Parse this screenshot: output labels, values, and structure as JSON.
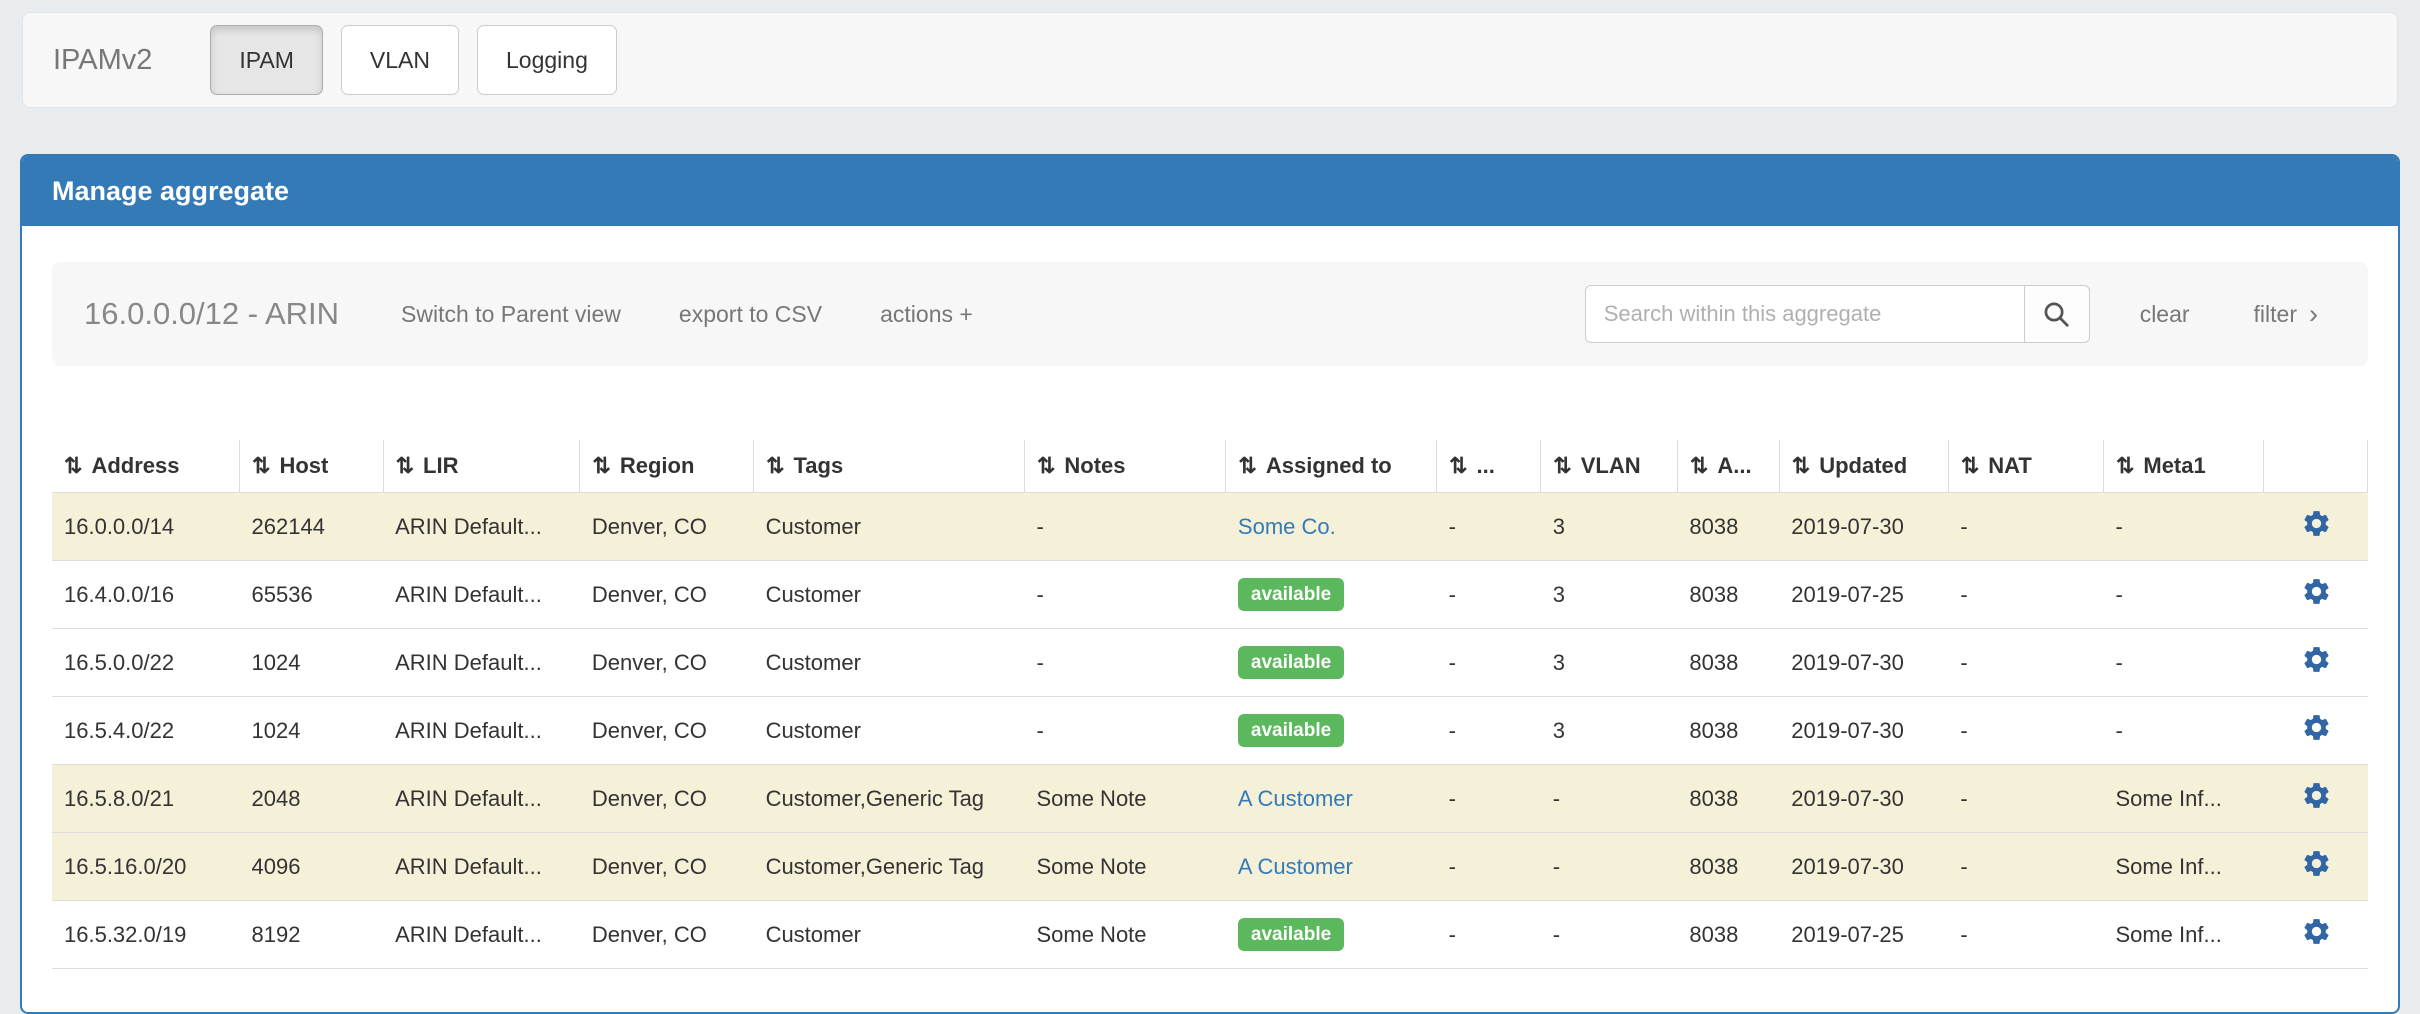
{
  "navbar": {
    "brand": "IPAMv2",
    "buttons": [
      {
        "label": "IPAM",
        "active": true
      },
      {
        "label": "VLAN",
        "active": false
      },
      {
        "label": "Logging",
        "active": false
      }
    ]
  },
  "panel": {
    "title": "Manage aggregate"
  },
  "toolbar": {
    "aggregate_title": "16.0.0.0/12 - ARIN",
    "links": [
      "Switch to Parent view",
      "export to CSV",
      "actions +"
    ],
    "search": {
      "placeholder": "Search within this aggregate",
      "value": ""
    },
    "clear_label": "clear",
    "filter_label": "filter"
  },
  "icons": {
    "sort": "⇅",
    "chevron_right": "›",
    "search": "search-icon",
    "gear": "gear-icon"
  },
  "colors": {
    "accent_blue": "#337ab7",
    "link_blue": "#337ab7",
    "gear_blue": "#3165a4",
    "badge_green": "#5cb85c",
    "row_highlight": "#f5f1d9",
    "page_background": "#e9ecef",
    "toolbar_background": "#f7f7f7"
  },
  "table": {
    "columns": [
      {
        "key": "address",
        "label": "Address",
        "sortable": true
      },
      {
        "key": "host",
        "label": "Host",
        "sortable": true
      },
      {
        "key": "lir",
        "label": "LIR",
        "sortable": true
      },
      {
        "key": "region",
        "label": "Region",
        "sortable": true
      },
      {
        "key": "tags",
        "label": "Tags",
        "sortable": true
      },
      {
        "key": "notes",
        "label": "Notes",
        "sortable": true
      },
      {
        "key": "assigned_to",
        "label": "Assigned to",
        "sortable": true
      },
      {
        "key": "ellipsis",
        "label": "...",
        "sortable": true
      },
      {
        "key": "vlan",
        "label": "VLAN",
        "sortable": true
      },
      {
        "key": "a",
        "label": "A...",
        "sortable": true
      },
      {
        "key": "updated",
        "label": "Updated",
        "sortable": true
      },
      {
        "key": "nat",
        "label": "NAT",
        "sortable": true
      },
      {
        "key": "meta1",
        "label": "Meta1",
        "sortable": true
      },
      {
        "key": "actions",
        "label": "",
        "sortable": false
      }
    ],
    "rows": [
      {
        "highlighted": true,
        "address": "16.0.0.0/14",
        "host": "262144",
        "lir": "ARIN Default...",
        "region": "Denver, CO",
        "tags": "Customer",
        "notes": "-",
        "assigned_to": {
          "type": "link",
          "text": "Some Co."
        },
        "ellipsis": "-",
        "vlan": "3",
        "a": "8038",
        "updated": "2019-07-30",
        "nat": "-",
        "meta1": "-"
      },
      {
        "highlighted": false,
        "address": "16.4.0.0/16",
        "host": "65536",
        "lir": "ARIN Default...",
        "region": "Denver, CO",
        "tags": "Customer",
        "notes": "-",
        "assigned_to": {
          "type": "badge",
          "text": "available"
        },
        "ellipsis": "-",
        "vlan": "3",
        "a": "8038",
        "updated": "2019-07-25",
        "nat": "-",
        "meta1": "-"
      },
      {
        "highlighted": false,
        "address": "16.5.0.0/22",
        "host": "1024",
        "lir": "ARIN Default...",
        "region": "Denver, CO",
        "tags": "Customer",
        "notes": "-",
        "assigned_to": {
          "type": "badge",
          "text": "available"
        },
        "ellipsis": "-",
        "vlan": "3",
        "a": "8038",
        "updated": "2019-07-30",
        "nat": "-",
        "meta1": "-"
      },
      {
        "highlighted": false,
        "address": "16.5.4.0/22",
        "host": "1024",
        "lir": "ARIN Default...",
        "region": "Denver, CO",
        "tags": "Customer",
        "notes": "-",
        "assigned_to": {
          "type": "badge",
          "text": "available"
        },
        "ellipsis": "-",
        "vlan": "3",
        "a": "8038",
        "updated": "2019-07-30",
        "nat": "-",
        "meta1": "-"
      },
      {
        "highlighted": true,
        "address": "16.5.8.0/21",
        "host": "2048",
        "lir": "ARIN Default...",
        "region": "Denver, CO",
        "tags": "Customer,Generic Tag",
        "notes": "Some Note",
        "assigned_to": {
          "type": "link",
          "text": "A Customer"
        },
        "ellipsis": "-",
        "vlan": "-",
        "a": "8038",
        "updated": "2019-07-30",
        "nat": "-",
        "meta1": "Some Inf..."
      },
      {
        "highlighted": true,
        "address": "16.5.16.0/20",
        "host": "4096",
        "lir": "ARIN Default...",
        "region": "Denver, CO",
        "tags": "Customer,Generic Tag",
        "notes": "Some Note",
        "assigned_to": {
          "type": "link",
          "text": "A Customer"
        },
        "ellipsis": "-",
        "vlan": "-",
        "a": "8038",
        "updated": "2019-07-30",
        "nat": "-",
        "meta1": "Some Inf..."
      },
      {
        "highlighted": false,
        "address": "16.5.32.0/19",
        "host": "8192",
        "lir": "ARIN Default...",
        "region": "Denver, CO",
        "tags": "Customer",
        "notes": "Some Note",
        "assigned_to": {
          "type": "badge",
          "text": "available"
        },
        "ellipsis": "-",
        "vlan": "-",
        "a": "8038",
        "updated": "2019-07-25",
        "nat": "-",
        "meta1": "Some Inf..."
      }
    ]
  }
}
